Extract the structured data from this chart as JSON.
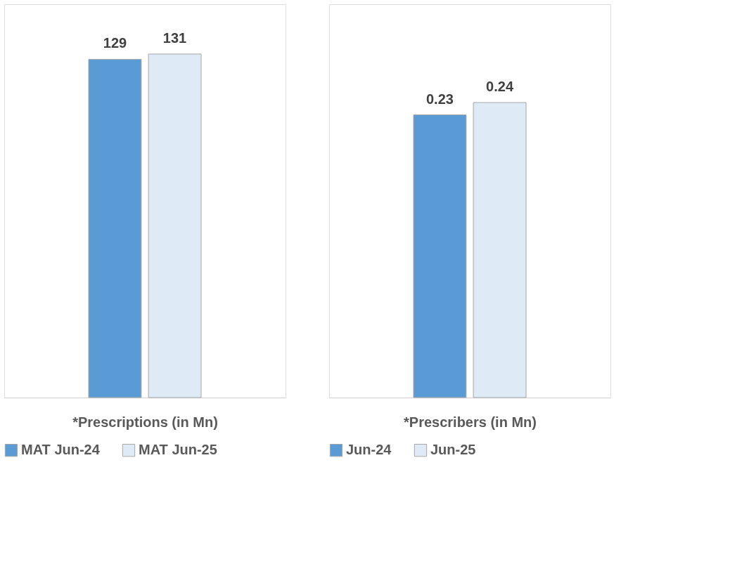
{
  "chart_data": [
    {
      "type": "bar",
      "xlabel": "*Prescriptions (in Mn)",
      "categories": [
        null
      ],
      "ylim": [
        0,
        150
      ],
      "tick_labels": false,
      "grid": false,
      "legend": "bottom",
      "data_labels": true,
      "series": [
        {
          "name": "MAT Jun-24",
          "color": "#5b9bd5",
          "values": [
            129
          ]
        },
        {
          "name": "MAT Jun-25",
          "color": "#deebf7",
          "values": [
            131
          ]
        }
      ]
    },
    {
      "type": "bar",
      "xlabel": "*Prescribers (in Mn)",
      "categories": [
        null
      ],
      "ylim": [
        0,
        0.32
      ],
      "tick_labels": false,
      "grid": false,
      "legend": "bottom",
      "data_labels": true,
      "series": [
        {
          "name": "Jun-24",
          "color": "#5b9bd5",
          "values": [
            0.23
          ]
        },
        {
          "name": "Jun-25",
          "color": "#deebf7",
          "values": [
            0.24
          ]
        }
      ]
    }
  ]
}
